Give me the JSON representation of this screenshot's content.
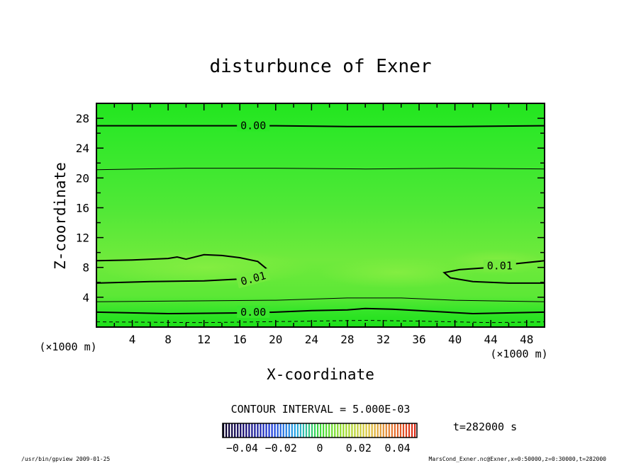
{
  "chart_data": {
    "type": "contour",
    "title": "disturbunce of Exner",
    "xlabel": "X-coordinate",
    "ylabel": "Z-coordinate",
    "x_unit": "(×1000 m)",
    "y_unit": "(×1000 m)",
    "xlim": [
      0,
      50
    ],
    "ylim": [
      0,
      30
    ],
    "x_ticks": [
      4,
      8,
      12,
      16,
      20,
      24,
      28,
      32,
      36,
      40,
      44,
      48
    ],
    "y_ticks": [
      4,
      8,
      12,
      16,
      20,
      24,
      28
    ],
    "contour_interval": "CONTOUR INTERVAL = 5.000E-03",
    "contour_labels": [
      {
        "text": "0.00",
        "x": 17.5,
        "z": 27.0
      },
      {
        "text": "0.01",
        "x": 17.5,
        "z": 6.5,
        "rotate": -15
      },
      {
        "text": "0.01",
        "x": 45.0,
        "z": 8.2
      },
      {
        "text": "0.00",
        "x": 17.5,
        "z": 2.0
      }
    ],
    "contours": [
      {
        "style": "thick",
        "points": [
          [
            0,
            27.0
          ],
          [
            16,
            27.0
          ],
          [
            20,
            27.0
          ],
          [
            28,
            26.9
          ],
          [
            40,
            26.9
          ],
          [
            50,
            27.0
          ]
        ]
      },
      {
        "style": "thin",
        "points": [
          [
            0,
            21.1
          ],
          [
            10,
            21.3
          ],
          [
            20,
            21.3
          ],
          [
            30,
            21.2
          ],
          [
            40,
            21.3
          ],
          [
            50,
            21.2
          ]
        ]
      },
      {
        "style": "thick",
        "points": [
          [
            0,
            8.9
          ],
          [
            4,
            9.0
          ],
          [
            8,
            9.2
          ],
          [
            9,
            9.4
          ],
          [
            10,
            9.1
          ],
          [
            12,
            9.7
          ],
          [
            14,
            9.6
          ],
          [
            16,
            9.3
          ],
          [
            18,
            8.8
          ],
          [
            19,
            7.8
          ],
          [
            19.1,
            7.2
          ],
          [
            17,
            6.5
          ],
          [
            12,
            6.2
          ],
          [
            6,
            6.1
          ],
          [
            0,
            5.9
          ]
        ]
      },
      {
        "style": "thick",
        "points": [
          [
            50,
            8.9
          ],
          [
            46,
            8.4
          ],
          [
            44,
            8.0
          ],
          [
            40.5,
            7.7
          ],
          [
            38.8,
            7.3
          ],
          [
            39.5,
            6.6
          ],
          [
            42,
            6.1
          ],
          [
            46,
            5.9
          ],
          [
            50,
            5.9
          ]
        ]
      },
      {
        "style": "thick",
        "points": [
          [
            0,
            2.0
          ],
          [
            8,
            1.8
          ],
          [
            16,
            1.9
          ],
          [
            20,
            2.0
          ],
          [
            24,
            2.2
          ],
          [
            28,
            2.3
          ],
          [
            30,
            2.5
          ],
          [
            33,
            2.4
          ],
          [
            36,
            2.2
          ],
          [
            42,
            1.8
          ],
          [
            50,
            2.0
          ]
        ]
      },
      {
        "style": "thin",
        "points": [
          [
            0,
            3.4
          ],
          [
            10,
            3.5
          ],
          [
            20,
            3.6
          ],
          [
            28,
            3.9
          ],
          [
            34,
            3.9
          ],
          [
            40,
            3.6
          ],
          [
            50,
            3.4
          ]
        ]
      },
      {
        "style": "dashed",
        "points": [
          [
            0,
            0.7
          ],
          [
            12,
            0.6
          ],
          [
            24,
            0.8
          ],
          [
            30,
            0.9
          ],
          [
            36,
            0.8
          ],
          [
            44,
            0.6
          ],
          [
            50,
            0.7
          ]
        ]
      }
    ],
    "colorbar": {
      "ticks": [
        "−0.04",
        "−0.02",
        "0",
        "0.02",
        "0.04"
      ],
      "tick_values": [
        -0.04,
        -0.02,
        0,
        0.02,
        0.04
      ],
      "range": [
        -0.05,
        0.05
      ]
    },
    "time_label": "t=282000 s",
    "footer_left": "/usr/bin/gpview   2009-01-25",
    "footer_right": "MarsCond_Exner.nc@Exner,x=0:50000,z=0:30000,t=282000"
  }
}
